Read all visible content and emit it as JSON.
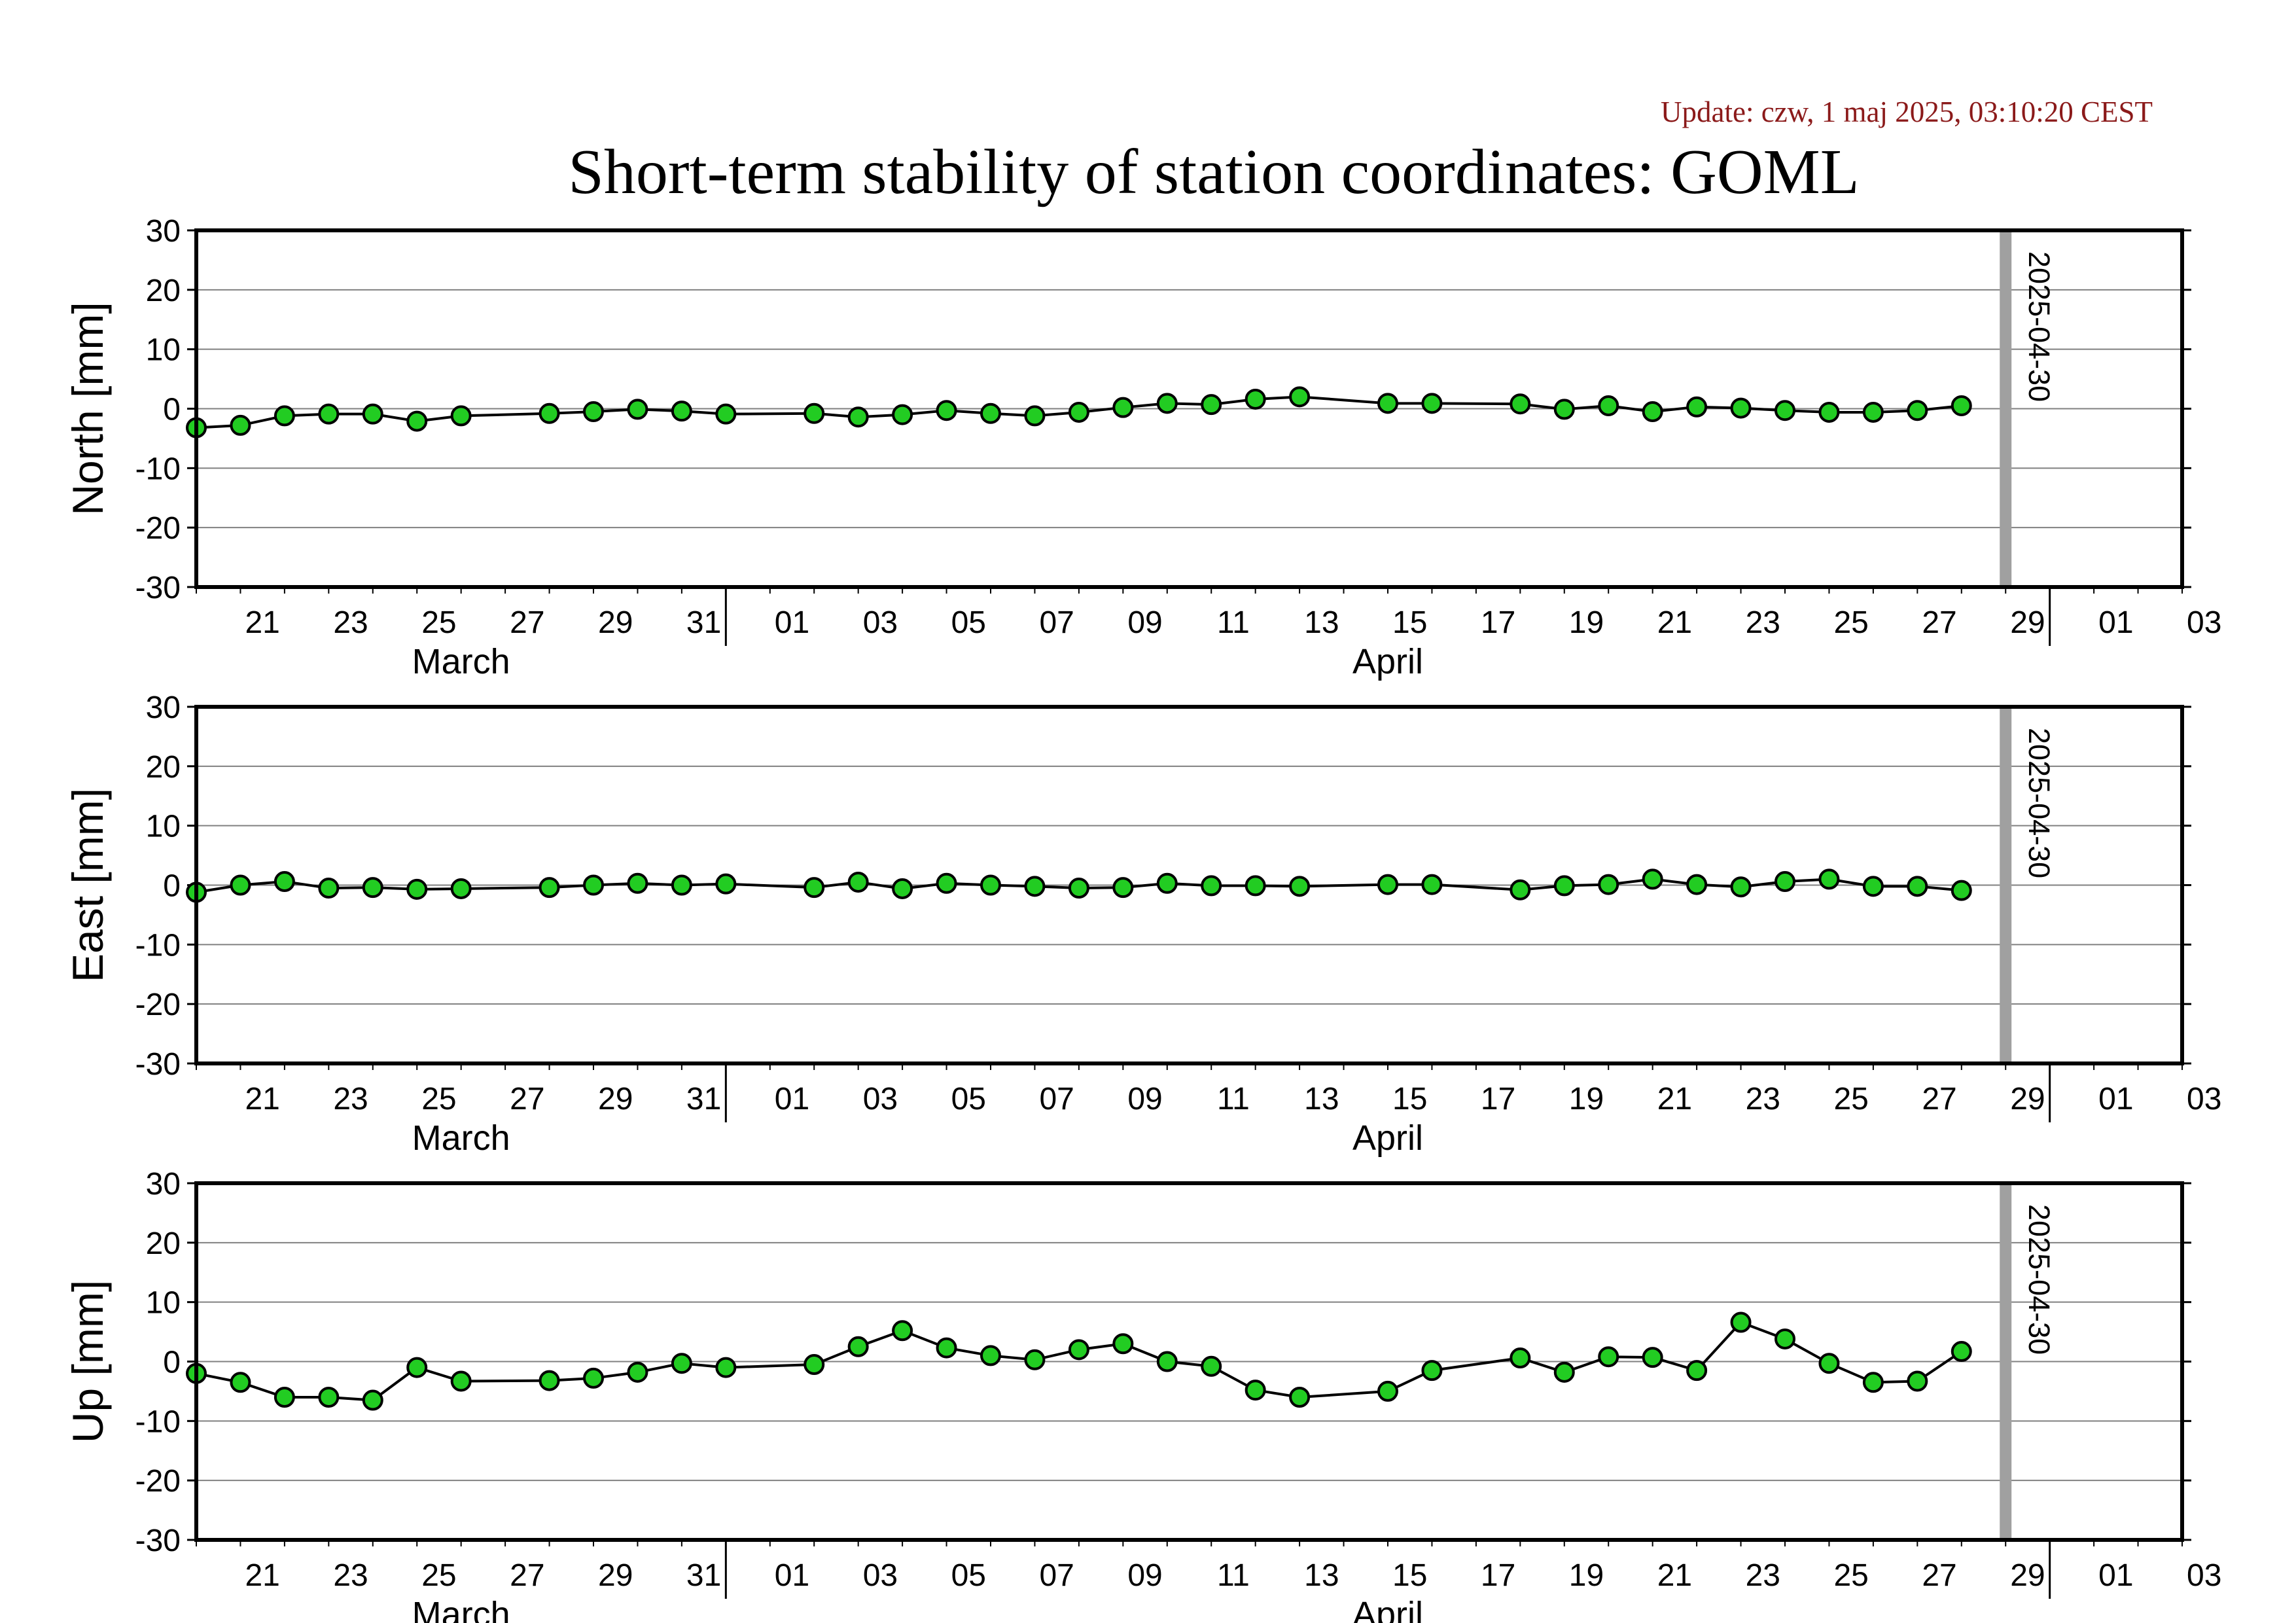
{
  "header": {
    "update": "Update: czw, 1 maj 2025, 03:10:20 CEST",
    "title": "Short-term stability of station coordinates: GOML"
  },
  "colors": {
    "marker_fill": "#22cc22",
    "marker_stroke": "#000000",
    "line": "#000000",
    "grid": "#808080",
    "marker_band": "#a0a0a0",
    "update_text": "#8b1a1a"
  },
  "chart_data": [
    {
      "type": "line",
      "ylabel": "North [mm]",
      "ylim": [
        -30,
        30
      ],
      "yticks": [
        "30",
        "20",
        "10",
        "0",
        "-10",
        "-20",
        "-30"
      ],
      "xlim": [
        "2025-03-20",
        "2025-05-04"
      ],
      "xticks": [
        "21",
        "23",
        "25",
        "27",
        "29",
        "31",
        "01",
        "03",
        "05",
        "07",
        "09",
        "11",
        "13",
        "15",
        "17",
        "19",
        "21",
        "23",
        "25",
        "27",
        "29",
        "01",
        "03"
      ],
      "months": [
        "March",
        "April"
      ],
      "grid": "horizontal",
      "vline": {
        "x": "2025-04-30",
        "label": "2025-04-30"
      },
      "x": [
        "2025-03-20",
        "2025-03-21",
        "2025-03-22",
        "2025-03-23",
        "2025-03-24",
        "2025-03-25",
        "2025-03-26",
        "2025-03-28",
        "2025-03-29",
        "2025-03-30",
        "2025-03-31",
        "2025-04-01",
        "2025-04-03",
        "2025-04-04",
        "2025-04-05",
        "2025-04-06",
        "2025-04-07",
        "2025-04-08",
        "2025-04-09",
        "2025-04-10",
        "2025-04-11",
        "2025-04-12",
        "2025-04-13",
        "2025-04-14",
        "2025-04-16",
        "2025-04-17",
        "2025-04-19",
        "2025-04-20",
        "2025-04-21",
        "2025-04-22",
        "2025-04-23",
        "2025-04-24",
        "2025-04-25",
        "2025-04-26",
        "2025-04-27",
        "2025-04-28",
        "2025-04-29"
      ],
      "values": [
        -3.2,
        -2.8,
        -1.2,
        -0.9,
        -0.9,
        -2.1,
        -1.2,
        -0.8,
        -0.5,
        -0.1,
        -0.4,
        -0.9,
        -0.8,
        -1.4,
        -1.0,
        -0.3,
        -0.8,
        -1.2,
        -0.6,
        0.2,
        0.9,
        0.7,
        1.6,
        2.0,
        0.9,
        0.9,
        0.8,
        -0.1,
        0.5,
        -0.5,
        0.3,
        0.1,
        -0.3,
        -0.6,
        -0.6,
        -0.3,
        0.5
      ]
    },
    {
      "type": "line",
      "ylabel": "East [mm]",
      "ylim": [
        -30,
        30
      ],
      "yticks": [
        "30",
        "20",
        "10",
        "0",
        "-10",
        "-20",
        "-30"
      ],
      "xlim": [
        "2025-03-20",
        "2025-05-04"
      ],
      "xticks": [
        "21",
        "23",
        "25",
        "27",
        "29",
        "31",
        "01",
        "03",
        "05",
        "07",
        "09",
        "11",
        "13",
        "15",
        "17",
        "19",
        "21",
        "23",
        "25",
        "27",
        "29",
        "01",
        "03"
      ],
      "months": [
        "March",
        "April"
      ],
      "grid": "horizontal",
      "vline": {
        "x": "2025-04-30",
        "label": "2025-04-30"
      },
      "x": [
        "2025-03-20",
        "2025-03-21",
        "2025-03-22",
        "2025-03-23",
        "2025-03-24",
        "2025-03-25",
        "2025-03-26",
        "2025-03-28",
        "2025-03-29",
        "2025-03-30",
        "2025-03-31",
        "2025-04-01",
        "2025-04-03",
        "2025-04-04",
        "2025-04-05",
        "2025-04-06",
        "2025-04-07",
        "2025-04-08",
        "2025-04-09",
        "2025-04-10",
        "2025-04-11",
        "2025-04-12",
        "2025-04-13",
        "2025-04-14",
        "2025-04-16",
        "2025-04-17",
        "2025-04-19",
        "2025-04-20",
        "2025-04-21",
        "2025-04-22",
        "2025-04-23",
        "2025-04-24",
        "2025-04-25",
        "2025-04-26",
        "2025-04-27",
        "2025-04-28",
        "2025-04-29"
      ],
      "values": [
        -1.2,
        0.0,
        0.6,
        -0.5,
        -0.4,
        -0.7,
        -0.6,
        -0.4,
        0.0,
        0.3,
        0.0,
        0.2,
        -0.4,
        0.5,
        -0.6,
        0.3,
        0.0,
        -0.2,
        -0.5,
        -0.4,
        0.3,
        -0.1,
        -0.1,
        -0.2,
        0.1,
        0.1,
        -0.8,
        -0.1,
        0.1,
        1.0,
        0.1,
        -0.3,
        0.6,
        1.0,
        -0.2,
        -0.2,
        -0.9
      ]
    },
    {
      "type": "line",
      "ylabel": "Up [mm]",
      "ylim": [
        -30,
        30
      ],
      "yticks": [
        "30",
        "20",
        "10",
        "0",
        "-10",
        "-20",
        "-30"
      ],
      "xlim": [
        "2025-03-20",
        "2025-05-04"
      ],
      "xticks": [
        "21",
        "23",
        "25",
        "27",
        "29",
        "31",
        "01",
        "03",
        "05",
        "07",
        "09",
        "11",
        "13",
        "15",
        "17",
        "19",
        "21",
        "23",
        "25",
        "27",
        "29",
        "01",
        "03"
      ],
      "months": [
        "March",
        "April"
      ],
      "grid": "horizontal",
      "vline": {
        "x": "2025-04-30",
        "label": "2025-04-30"
      },
      "x": [
        "2025-03-20",
        "2025-03-21",
        "2025-03-22",
        "2025-03-23",
        "2025-03-24",
        "2025-03-25",
        "2025-03-26",
        "2025-03-28",
        "2025-03-29",
        "2025-03-30",
        "2025-03-31",
        "2025-04-01",
        "2025-04-03",
        "2025-04-04",
        "2025-04-05",
        "2025-04-06",
        "2025-04-07",
        "2025-04-08",
        "2025-04-09",
        "2025-04-10",
        "2025-04-11",
        "2025-04-12",
        "2025-04-13",
        "2025-04-14",
        "2025-04-16",
        "2025-04-17",
        "2025-04-19",
        "2025-04-20",
        "2025-04-21",
        "2025-04-22",
        "2025-04-23",
        "2025-04-24",
        "2025-04-25",
        "2025-04-26",
        "2025-04-27",
        "2025-04-28",
        "2025-04-29"
      ],
      "values": [
        -2.0,
        -3.5,
        -6.0,
        -6.0,
        -6.5,
        -1.0,
        -3.3,
        -3.2,
        -2.8,
        -1.8,
        -0.3,
        -1.0,
        -0.5,
        2.5,
        5.2,
        2.3,
        1.0,
        0.3,
        2.0,
        3.0,
        0.0,
        -0.8,
        -4.8,
        -6.0,
        -5.0,
        -1.5,
        0.6,
        -1.8,
        0.8,
        0.7,
        -1.5,
        6.6,
        3.8,
        -0.3,
        -3.5,
        -3.3,
        1.7
      ]
    }
  ]
}
